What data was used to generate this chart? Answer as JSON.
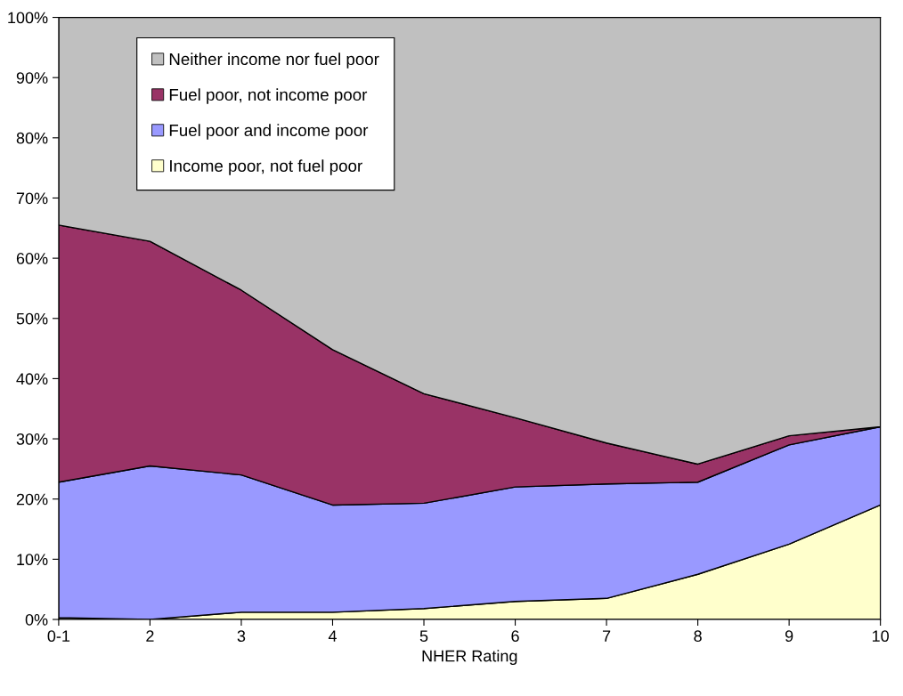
{
  "chart_data": {
    "type": "area",
    "stacked": true,
    "xlabel": "NHER Rating",
    "categories": [
      "0-1",
      "2",
      "3",
      "4",
      "5",
      "6",
      "7",
      "8",
      "9",
      "10"
    ],
    "series": [
      {
        "name": "Income poor, not fuel poor",
        "color": "#ffffcc",
        "values": [
          0.3,
          0,
          1.2,
          1.2,
          1.8,
          3.0,
          3.5,
          7.5,
          12.5,
          19.0
        ]
      },
      {
        "name": "Fuel poor and income poor",
        "color": "#9999ff",
        "values": [
          22.5,
          25.5,
          22.8,
          17.8,
          17.5,
          19.0,
          19.0,
          15.3,
          16.5,
          13.0
        ]
      },
      {
        "name": "Fuel poor, not income poor",
        "color": "#993366",
        "values": [
          42.7,
          37.3,
          30.7,
          25.8,
          18.2,
          11.5,
          6.8,
          3.0,
          1.5,
          0
        ]
      },
      {
        "name": "Neither income nor fuel poor",
        "color": "#c0c0c0",
        "values": [
          34.5,
          37.2,
          45.3,
          55.2,
          62.5,
          66.5,
          70.7,
          74.2,
          69.5,
          68.0
        ]
      }
    ],
    "ylim": [
      0,
      100
    ],
    "yticks": [
      {
        "value": 0,
        "label": "0%"
      },
      {
        "value": 10,
        "label": "10%"
      },
      {
        "value": 20,
        "label": "20%"
      },
      {
        "value": 30,
        "label": "30%"
      },
      {
        "value": 40,
        "label": "40%"
      },
      {
        "value": 50,
        "label": "50%"
      },
      {
        "value": 60,
        "label": "60%"
      },
      {
        "value": 70,
        "label": "70%"
      },
      {
        "value": 80,
        "label": "80%"
      },
      {
        "value": 90,
        "label": "90%"
      },
      {
        "value": 100,
        "label": "100%"
      }
    ],
    "legend": "top left",
    "grid": false
  }
}
